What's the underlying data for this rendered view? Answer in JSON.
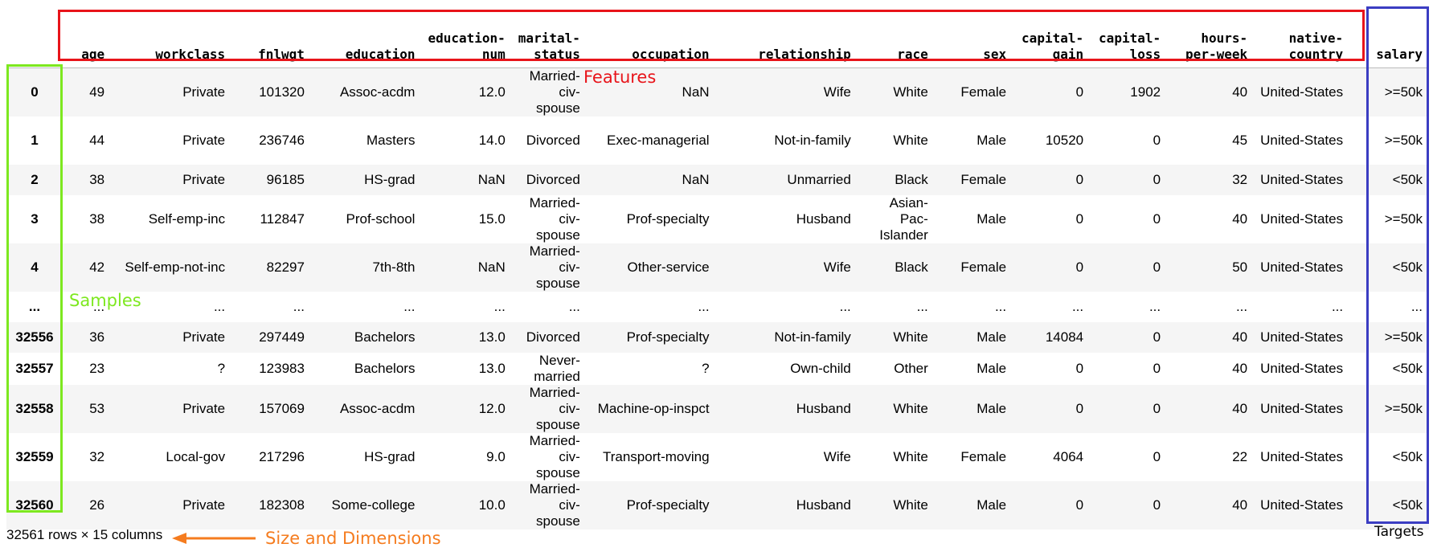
{
  "table": {
    "columns": [
      "",
      "age",
      "workclass",
      "fnlwgt",
      "education",
      "education-num",
      "marital-status",
      "occupation",
      "relationship",
      "race",
      "sex",
      "capital-gain",
      "capital-loss",
      "hours-per-week",
      "native-country",
      "salary"
    ],
    "rows": [
      {
        "index": "0",
        "cells": [
          "49",
          "Private",
          "101320",
          "Assoc-acdm",
          "12.0",
          "Married-civ-spouse",
          "NaN",
          "Wife",
          "White",
          "Female",
          "0",
          "1902",
          "40",
          "United-States",
          ">=50k"
        ]
      },
      {
        "index": "1",
        "cells": [
          "44",
          "Private",
          "236746",
          "Masters",
          "14.0",
          "Divorced",
          "Exec-managerial",
          "Not-in-family",
          "White",
          "Male",
          "10520",
          "0",
          "45",
          "United-States",
          ">=50k"
        ]
      },
      {
        "index": "2",
        "cells": [
          "38",
          "Private",
          "96185",
          "HS-grad",
          "NaN",
          "Divorced",
          "NaN",
          "Unmarried",
          "Black",
          "Female",
          "0",
          "0",
          "32",
          "United-States",
          "<50k"
        ]
      },
      {
        "index": "3",
        "cells": [
          "38",
          "Self-emp-inc",
          "112847",
          "Prof-school",
          "15.0",
          "Married-civ-spouse",
          "Prof-specialty",
          "Husband",
          "Asian-Pac-Islander",
          "Male",
          "0",
          "0",
          "40",
          "United-States",
          ">=50k"
        ]
      },
      {
        "index": "4",
        "cells": [
          "42",
          "Self-emp-not-inc",
          "82297",
          "7th-8th",
          "NaN",
          "Married-civ-spouse",
          "Other-service",
          "Wife",
          "Black",
          "Female",
          "0",
          "0",
          "50",
          "United-States",
          "<50k"
        ]
      },
      {
        "index": "...",
        "cells": [
          "...",
          "...",
          "...",
          "...",
          "...",
          "...",
          "...",
          "...",
          "...",
          "...",
          "...",
          "...",
          "...",
          "...",
          "..."
        ]
      },
      {
        "index": "32556",
        "cells": [
          "36",
          "Private",
          "297449",
          "Bachelors",
          "13.0",
          "Divorced",
          "Prof-specialty",
          "Not-in-family",
          "White",
          "Male",
          "14084",
          "0",
          "40",
          "United-States",
          ">=50k"
        ]
      },
      {
        "index": "32557",
        "cells": [
          "23",
          "?",
          "123983",
          "Bachelors",
          "13.0",
          "Never-married",
          "?",
          "Own-child",
          "Other",
          "Male",
          "0",
          "0",
          "40",
          "United-States",
          "<50k"
        ]
      },
      {
        "index": "32558",
        "cells": [
          "53",
          "Private",
          "157069",
          "Assoc-acdm",
          "12.0",
          "Married-civ-spouse",
          "Machine-op-inspct",
          "Husband",
          "White",
          "Male",
          "0",
          "0",
          "40",
          "United-States",
          ">=50k"
        ]
      },
      {
        "index": "32559",
        "cells": [
          "32",
          "Local-gov",
          "217296",
          "HS-grad",
          "9.0",
          "Married-civ-spouse",
          "Transport-moving",
          "Wife",
          "White",
          "Female",
          "4064",
          "0",
          "22",
          "United-States",
          "<50k"
        ]
      },
      {
        "index": "32560",
        "cells": [
          "26",
          "Private",
          "182308",
          "Some-college",
          "10.0",
          "Married-civ-spouse",
          "Prof-specialty",
          "Husband",
          "White",
          "Male",
          "0",
          "0",
          "40",
          "United-States",
          "<50k"
        ]
      }
    ]
  },
  "shape_text": "32561 rows × 15 columns",
  "annotations": {
    "features": "Features",
    "samples": "Samples",
    "size": "Size and Dimensions",
    "targets": "Targets"
  },
  "colors": {
    "features_box": "#e8141a",
    "samples_box": "#7de81f",
    "targets_box": "#3b3dc2",
    "size_arrow": "#f57c1f"
  }
}
